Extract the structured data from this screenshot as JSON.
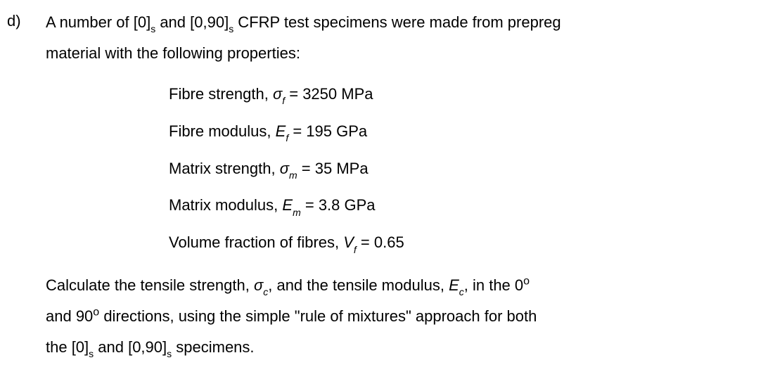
{
  "question": {
    "label": "d)",
    "intro_line1": "A number of [0]",
    "intro_sub1": "s",
    "intro_mid1": " and [0,90]",
    "intro_sub2": "s",
    "intro_end1": " CFRP test specimens were made from prepreg",
    "intro_line2": "material with the following properties:",
    "properties": {
      "fibre_strength": {
        "label": "Fibre strength, ",
        "sym": "σ",
        "sub": "f",
        "eq": " = 3250 MPa"
      },
      "fibre_modulus": {
        "label": "Fibre modulus, ",
        "sym": "E",
        "sub": "f",
        "eq": " = 195 GPa"
      },
      "matrix_strength": {
        "label": "Matrix strength, ",
        "sym": "σ",
        "sub": "m",
        "eq": " = 35 MPa"
      },
      "matrix_modulus": {
        "label": "Matrix modulus, ",
        "sym": "E",
        "sub": "m",
        "eq": " = 3.8 GPa"
      },
      "volume_fraction": {
        "label": "Volume fraction of fibres, ",
        "sym": "V",
        "sub": "f",
        "eq": " = 0.65"
      }
    },
    "calc_line1_a": "Calculate the tensile strength, ",
    "calc_sym1": "σ",
    "calc_sub1": "c",
    "calc_line1_b": ", and the tensile modulus, ",
    "calc_sym2": "E",
    "calc_sub2": "c",
    "calc_line1_c": ", in the 0",
    "calc_deg1": "o",
    "calc_line2_a": "and 90",
    "calc_deg2": "o",
    "calc_line2_b": " directions, using the simple \"rule of mixtures\" approach for both",
    "calc_line3_a": "the [0]",
    "calc_sub3": "s",
    "calc_line3_b": " and [0,90]",
    "calc_sub4": "s",
    "calc_line3_c": " specimens."
  }
}
